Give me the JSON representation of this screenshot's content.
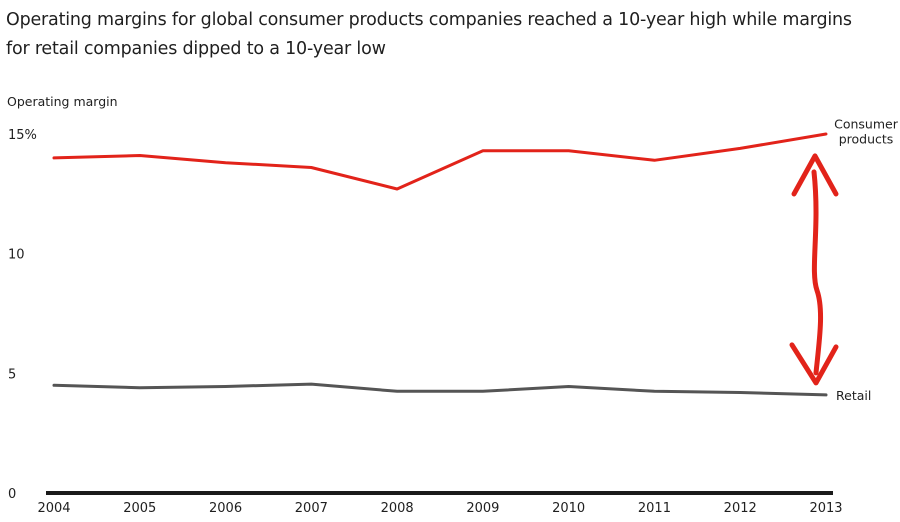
{
  "chart_data": {
    "type": "line",
    "title": "Operating margins for global consumer products companies reached a 10-year high while margins for retail companies dipped to a 10-year low",
    "ylabel": "Operating margin",
    "xlabel": "",
    "x": [
      "2004",
      "2005",
      "2006",
      "2007",
      "2008",
      "2009",
      "2010",
      "2011",
      "2012",
      "2013"
    ],
    "ylim": [
      0,
      15
    ],
    "yticks": [
      {
        "value": 15,
        "label": "15%"
      },
      {
        "value": 10,
        "label": "10"
      },
      {
        "value": 5,
        "label": "5"
      },
      {
        "value": 0,
        "label": "0"
      }
    ],
    "grid": false,
    "legend": "none",
    "series": [
      {
        "name": "Consumer products",
        "label_lines": [
          "Consumer",
          "products"
        ],
        "color": "#e2231a",
        "values": [
          14.0,
          14.1,
          13.8,
          13.6,
          12.7,
          14.3,
          14.3,
          13.9,
          14.4,
          15.0
        ]
      },
      {
        "name": "Retail",
        "label_lines": [
          "Retail"
        ],
        "color": "#555555",
        "values": [
          4.5,
          4.4,
          4.45,
          4.55,
          4.25,
          4.25,
          4.45,
          4.25,
          4.2,
          4.1
        ]
      }
    ],
    "annotation": {
      "type": "double-arrow",
      "color": "#e2231a",
      "x": "2013",
      "from": 14.0,
      "to": 4.6
    }
  }
}
